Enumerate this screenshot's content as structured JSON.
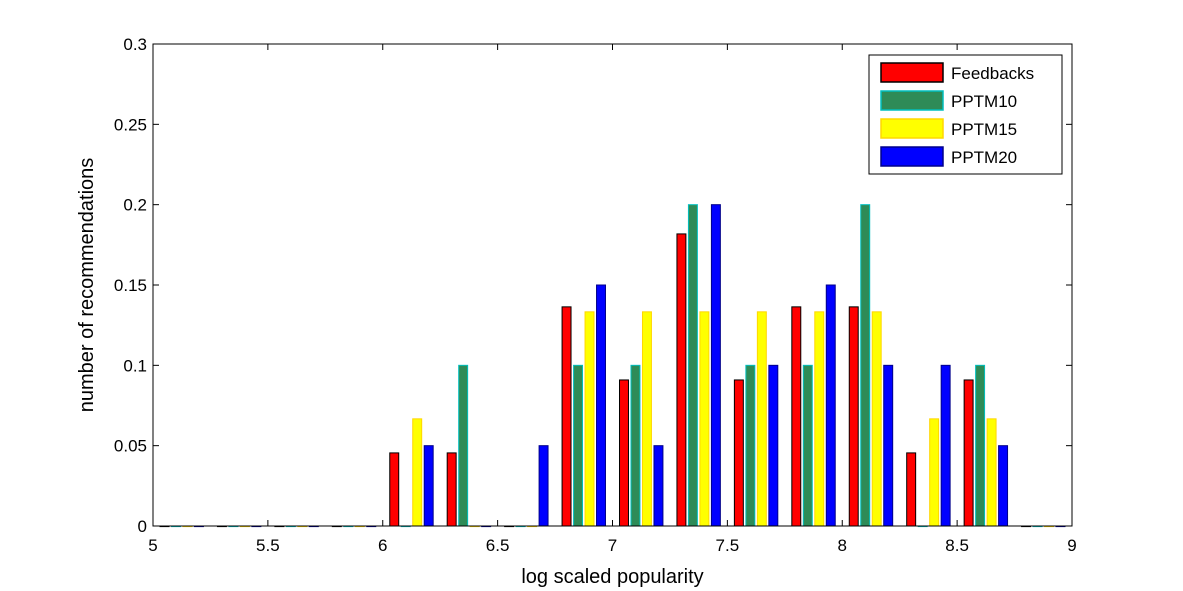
{
  "chart_data": {
    "type": "bar",
    "xlabel": "log scaled popularity",
    "ylabel": "number of recommendations",
    "xlim": [
      5,
      9
    ],
    "ylim": [
      0,
      0.3
    ],
    "xticks": [
      "5",
      "5.5",
      "6",
      "6.5",
      "7",
      "7.5",
      "8",
      "8.5",
      "9"
    ],
    "yticks": [
      "0",
      "0.05",
      "0.1",
      "0.15",
      "0.2",
      "0.25",
      "0.3"
    ],
    "legend_position": "top-right",
    "bin_centers": [
      5.125,
      5.375,
      5.625,
      5.875,
      6.125,
      6.375,
      6.625,
      6.875,
      7.125,
      7.375,
      7.625,
      7.875,
      8.125,
      8.375,
      8.625,
      8.875
    ],
    "series": [
      {
        "name": "Feedbacks",
        "color": "#ff0000",
        "edge": "#000000",
        "values": [
          0,
          0,
          0,
          0,
          0.0455,
          0.0455,
          0,
          0.1364,
          0.0909,
          0.1818,
          0.0909,
          0.1364,
          0.1364,
          0.0455,
          0.0909,
          0
        ]
      },
      {
        "name": "PPTM10",
        "color": "#2e8b57",
        "edge": "#00bfbf",
        "values": [
          0,
          0,
          0,
          0,
          0,
          0.1,
          0,
          0.1,
          0.1,
          0.2,
          0.1,
          0.1,
          0.2,
          0,
          0.1,
          0
        ]
      },
      {
        "name": "PPTM15",
        "color": "#ffff00",
        "edge": "#ffd700",
        "values": [
          0,
          0,
          0,
          0,
          0.0667,
          0,
          0,
          0.1333,
          0.1333,
          0.1333,
          0.1333,
          0.1333,
          0.1333,
          0.0667,
          0.0667,
          0
        ]
      },
      {
        "name": "PPTM20",
        "color": "#0000ff",
        "edge": "#00008b",
        "values": [
          0,
          0,
          0,
          0,
          0.05,
          0,
          0.05,
          0.15,
          0.05,
          0.2,
          0.1,
          0.15,
          0.1,
          0.1,
          0.05,
          0
        ]
      }
    ]
  }
}
